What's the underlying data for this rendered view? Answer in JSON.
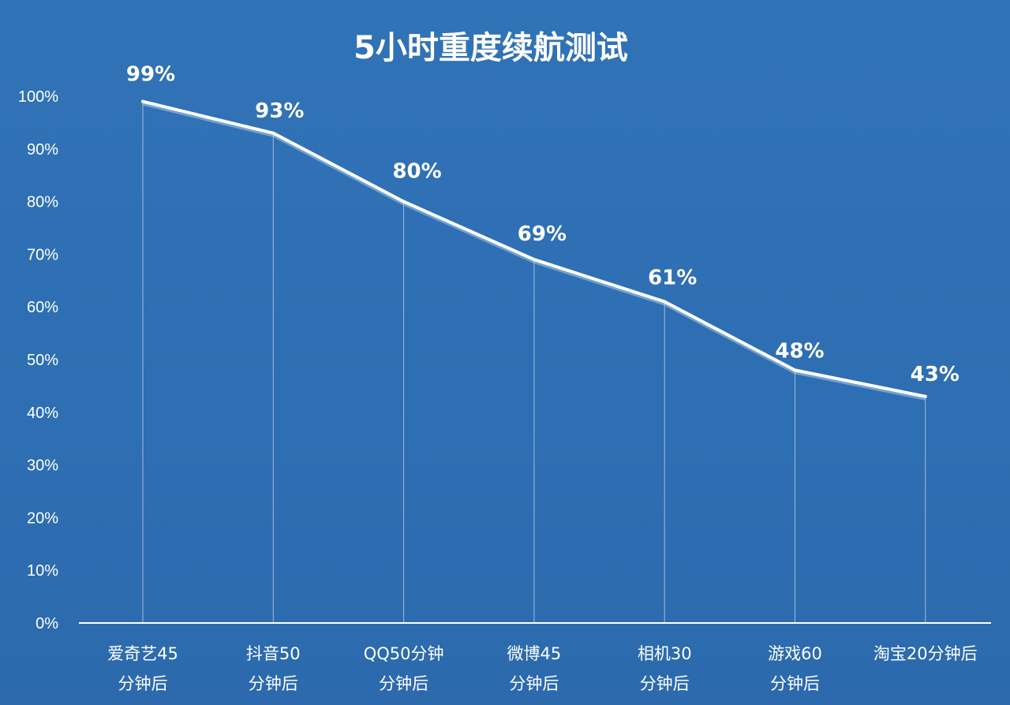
{
  "chart_data": {
    "type": "line",
    "title": "5小时重度续航测试",
    "xlabel": "",
    "ylabel": "",
    "ylim": [
      0,
      100
    ],
    "y_ticks": [
      "0%",
      "10%",
      "20%",
      "30%",
      "40%",
      "50%",
      "60%",
      "70%",
      "80%",
      "90%",
      "100%"
    ],
    "categories": [
      [
        "爱奇艺45",
        "分钟后"
      ],
      [
        "抖音50",
        "分钟后"
      ],
      [
        "QQ50分钟",
        "分钟后"
      ],
      [
        "微博45",
        "分钟后"
      ],
      [
        "相机30",
        "分钟后"
      ],
      [
        "游戏60",
        "分钟后"
      ],
      [
        "淘宝20分钟后",
        ""
      ]
    ],
    "series": [
      {
        "values": [
          99,
          93,
          80,
          69,
          61,
          48,
          43
        ]
      }
    ],
    "data_labels": [
      "99%",
      "93%",
      "80%",
      "69%",
      "61%",
      "48%",
      "43%"
    ],
    "grid": false,
    "legend": "none",
    "colors": {
      "background": "#2e6eb2",
      "line": "#ffffff",
      "text": "#ffffff"
    }
  }
}
